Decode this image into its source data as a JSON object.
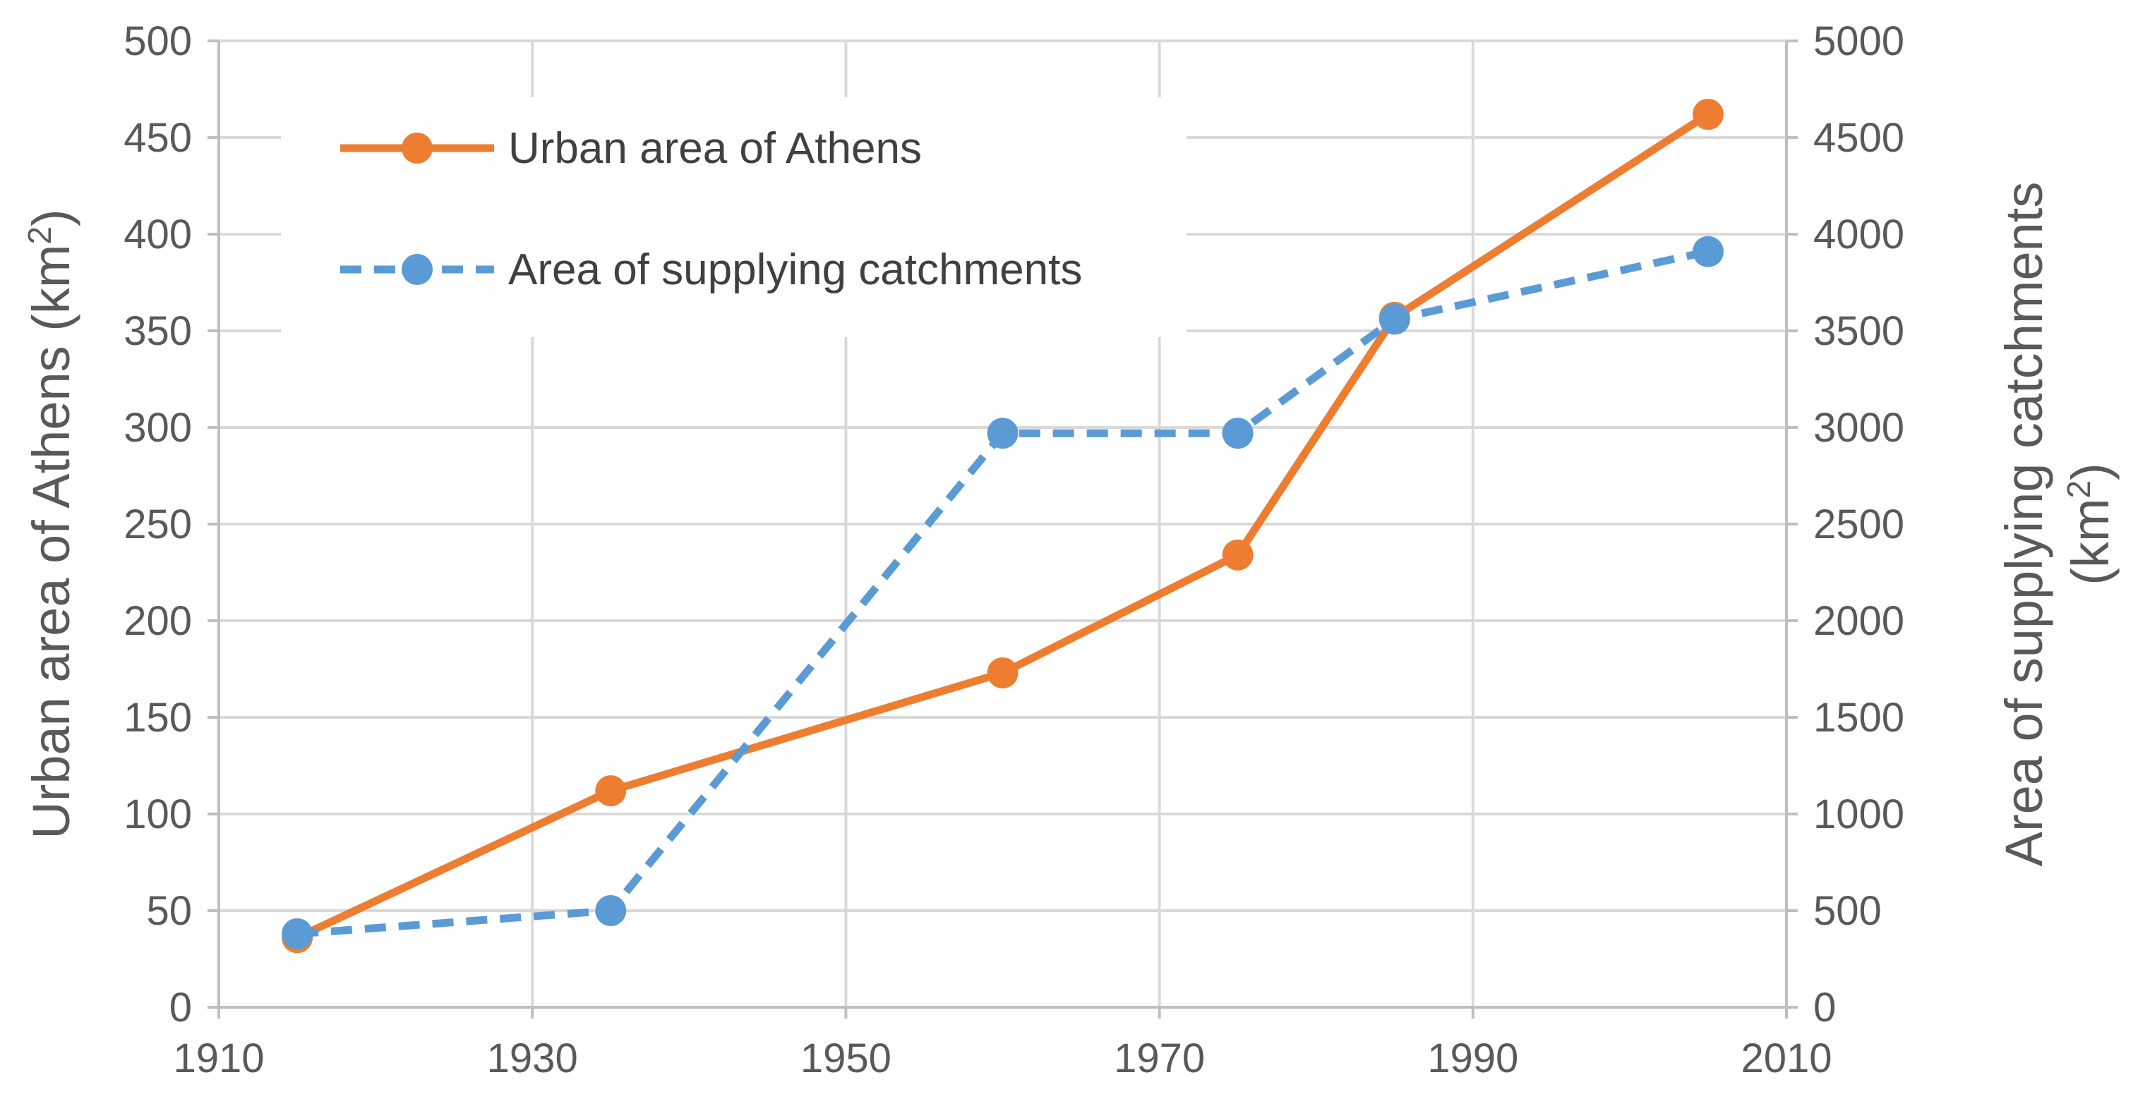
{
  "chart_data": {
    "type": "line",
    "xlim": [
      1910,
      2010
    ],
    "x_ticks": [
      1910,
      1930,
      1950,
      1970,
      1990,
      2010
    ],
    "y_left": {
      "label": "Urban area of Athens (km",
      "label_sup": "2",
      "label_end": ")",
      "lim": [
        0,
        500
      ],
      "ticks": [
        0,
        50,
        100,
        150,
        200,
        250,
        300,
        350,
        400,
        450,
        500
      ]
    },
    "y_right": {
      "label_line1": "Area of supplying catchments",
      "label_line2": "(km",
      "label_sup": "2",
      "label_end": ")",
      "lim": [
        0,
        5000
      ],
      "ticks": [
        0,
        500,
        1000,
        1500,
        2000,
        2500,
        3000,
        3500,
        4000,
        4500,
        5000
      ]
    },
    "grid": true,
    "legend_position": "top-left",
    "series": [
      {
        "name": "Urban area of Athens",
        "axis": "left",
        "style": "solid",
        "color": "#ED7D31",
        "x": [
          1915,
          1935,
          1960,
          1975,
          1985,
          2005
        ],
        "y": [
          36,
          112,
          173,
          234,
          357,
          462
        ]
      },
      {
        "name": "Area of supplying catchments",
        "axis": "right",
        "style": "dashed",
        "color": "#5B9BD5",
        "x": [
          1915,
          1935,
          1960,
          1975,
          1985,
          2005
        ],
        "y": [
          380,
          500,
          2970,
          2970,
          3560,
          3910
        ]
      }
    ]
  }
}
